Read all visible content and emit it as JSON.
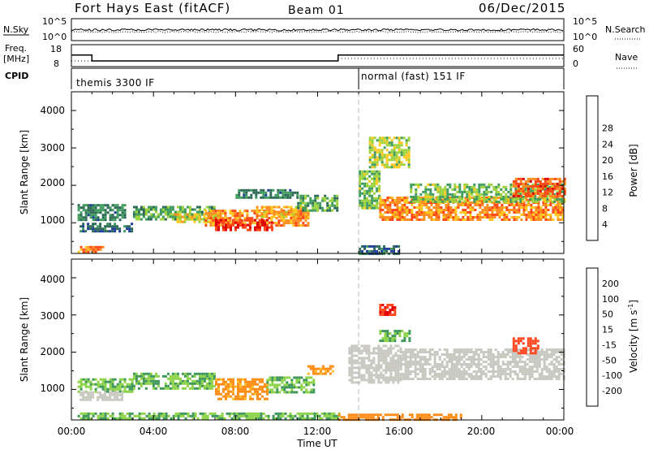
{
  "header": {
    "station": "Fort Hays East (fitACF)",
    "beam": "Beam 01",
    "date": "06/Dec/2015"
  },
  "noise_panel": {
    "left_label": "N.Sky",
    "right_label": "N.Search",
    "left_ticks": [
      "10^5",
      "10^0"
    ],
    "right_ticks": [
      "10^5",
      "10^0"
    ]
  },
  "freq_panel": {
    "left_label_top": "Freq.",
    "left_label_unit": "[MHz]",
    "right_label": "Nave",
    "left_ticks": [
      "18",
      "8"
    ],
    "right_ticks": [
      "60",
      "0"
    ]
  },
  "cpid_panel": {
    "label": "CPID",
    "modes": [
      {
        "name": "themis 3300 IF",
        "start_hour": 0
      },
      {
        "name": "normal (fast) 151 IF",
        "start_hour": 14
      }
    ]
  },
  "axes": {
    "ylabel": "Slant Range [km]",
    "yticks": [
      "1000",
      "2000",
      "3000",
      "4000"
    ],
    "xlabel": "Time UT",
    "xticks": [
      "00:00",
      "04:00",
      "08:00",
      "12:00",
      "16:00",
      "20:00",
      "00:00"
    ]
  },
  "power_colorbar": {
    "title": "Power [dB]",
    "labels": [
      "4",
      "8",
      "12",
      "16",
      "20",
      "24",
      "28"
    ],
    "colors": [
      "#1414ff",
      "#1e3c9c",
      "#2d6a55",
      "#3f9c5e",
      "#9cd23c",
      "#ffc81e",
      "#ff8c1e",
      "#ff4614",
      "#dc0000"
    ]
  },
  "velocity_colorbar": {
    "title": "Velocity [m s",
    "title_sup": "-1",
    "title_end": "]",
    "labels": [
      "200",
      "100",
      "50",
      "15",
      "-15",
      "-50",
      "-100",
      "-200"
    ],
    "colors": [
      "#1e46b4",
      "#3c6e9c",
      "#3c965a",
      "#8cd246",
      "#c8c8c0",
      "#ffbe28",
      "#ff8c14",
      "#ff461e",
      "#e60000"
    ]
  },
  "chart_data": {
    "type": "heatmap",
    "x_range_hours": [
      0,
      24
    ],
    "y_range_km": [
      180,
      4500
    ],
    "freq_segments_mhz": [
      {
        "start": 0,
        "end": 1,
        "value": 13.5
      },
      {
        "start": 1,
        "end": 13,
        "value": 10.5
      },
      {
        "start": 13,
        "end": 24,
        "value": 13.5
      }
    ],
    "power_features": [
      {
        "t0": 0.3,
        "t1": 2.6,
        "r0": 1050,
        "r1": 1500,
        "db": 10
      },
      {
        "t0": 0.4,
        "t1": 3.0,
        "r0": 750,
        "r1": 1000,
        "db": 8
      },
      {
        "t0": 0.3,
        "t1": 1.5,
        "r0": 200,
        "r1": 380,
        "db": 22
      },
      {
        "t0": 3.0,
        "t1": 7.0,
        "r0": 1100,
        "r1": 1450,
        "db": 12
      },
      {
        "t0": 5.0,
        "t1": 7.2,
        "r0": 1000,
        "r1": 1250,
        "db": 18
      },
      {
        "t0": 6.5,
        "t1": 11.5,
        "r0": 900,
        "r1": 1350,
        "db": 22
      },
      {
        "t0": 7.0,
        "t1": 9.8,
        "r0": 800,
        "r1": 1100,
        "db": 27
      },
      {
        "t0": 9.0,
        "t1": 11.6,
        "r0": 1150,
        "r1": 1450,
        "db": 20
      },
      {
        "t0": 8.0,
        "t1": 11.0,
        "r0": 1700,
        "r1": 1900,
        "db": 10
      },
      {
        "t0": 11.0,
        "t1": 13.0,
        "r0": 1300,
        "r1": 1750,
        "db": 12
      },
      {
        "t0": 14.0,
        "t1": 15.0,
        "r0": 1400,
        "r1": 2400,
        "db": 14
      },
      {
        "t0": 15.0,
        "t1": 24.0,
        "r0": 1050,
        "r1": 1700,
        "db": 22
      },
      {
        "t0": 16.5,
        "t1": 24.0,
        "r0": 1550,
        "r1": 2050,
        "db": 14
      },
      {
        "t0": 21.5,
        "t1": 24.0,
        "r0": 1700,
        "r1": 2200,
        "db": 24
      },
      {
        "t0": 14.5,
        "t1": 16.5,
        "r0": 2500,
        "r1": 3300,
        "db": 16
      },
      {
        "t0": 14.0,
        "t1": 16.0,
        "r0": 200,
        "r1": 400,
        "db": 8
      }
    ],
    "velocity_features": [
      {
        "t0": 0.3,
        "t1": 3.0,
        "r0": 950,
        "r1": 1300,
        "v": 30
      },
      {
        "t0": 0.4,
        "t1": 2.5,
        "r0": 700,
        "r1": 950,
        "v": 0
      },
      {
        "t0": 3.0,
        "t1": 7.0,
        "r0": 1050,
        "r1": 1450,
        "v": 30
      },
      {
        "t0": 7.0,
        "t1": 9.5,
        "r0": 750,
        "r1": 1300,
        "v": -40
      },
      {
        "t0": 9.5,
        "t1": 11.8,
        "r0": 900,
        "r1": 1350,
        "v": 30
      },
      {
        "t0": 11.5,
        "t1": 12.8,
        "r0": 1400,
        "r1": 1650,
        "v": -40
      },
      {
        "t0": 13.5,
        "t1": 16.0,
        "r0": 1200,
        "r1": 2200,
        "v": 0
      },
      {
        "t0": 16.0,
        "t1": 24.0,
        "r0": 1300,
        "r1": 2100,
        "v": 0
      },
      {
        "t0": 15.0,
        "t1": 16.5,
        "r0": 2300,
        "r1": 2600,
        "v": 30
      },
      {
        "t0": 21.5,
        "t1": 22.8,
        "r0": 2000,
        "r1": 2400,
        "v": -120
      },
      {
        "t0": 15.0,
        "t1": 15.8,
        "r0": 3000,
        "r1": 3300,
        "v": -150
      },
      {
        "t0": 0.3,
        "t1": 13.0,
        "r0": 200,
        "r1": 380,
        "v": 30
      },
      {
        "t0": 13.0,
        "t1": 19.0,
        "r0": 200,
        "r1": 350,
        "v": -50
      }
    ]
  }
}
